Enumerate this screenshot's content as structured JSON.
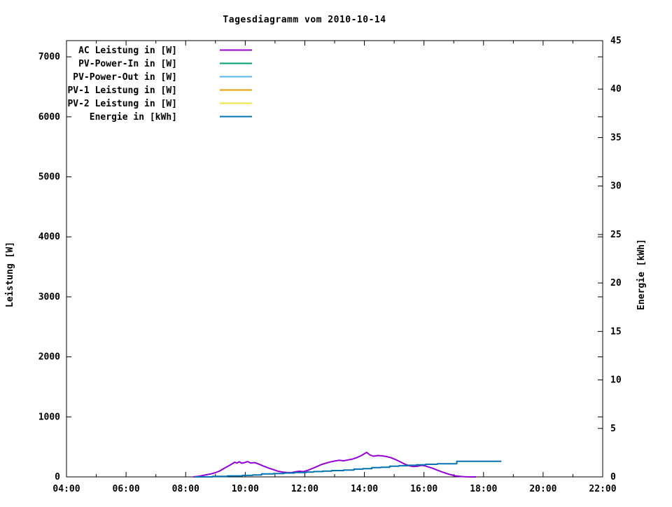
{
  "chart_data": {
    "type": "line",
    "title": "Tagesdiagramm vom 2010-10-14",
    "xlabel": "",
    "ylabel": "Leistung [W]",
    "y2label": "Energie [kWh]",
    "grid": false,
    "legend_position": "top-left-inside",
    "background_color": "#ffffff",
    "axis_color": "#000000",
    "xlim_hours": [
      4,
      22
    ],
    "ylim": [
      0,
      7270
    ],
    "y2lim": [
      0,
      45
    ],
    "xticks": [
      {
        "h": 4,
        "label": "04:00"
      },
      {
        "h": 6,
        "label": "06:00"
      },
      {
        "h": 8,
        "label": "08:00"
      },
      {
        "h": 10,
        "label": "10:00"
      },
      {
        "h": 12,
        "label": "12:00"
      },
      {
        "h": 14,
        "label": "14:00"
      },
      {
        "h": 16,
        "label": "16:00"
      },
      {
        "h": 18,
        "label": "18:00"
      },
      {
        "h": 20,
        "label": "20:00"
      },
      {
        "h": 22,
        "label": "22:00"
      }
    ],
    "x_minor_hours": [
      5,
      7,
      9,
      11,
      13,
      15,
      17,
      19,
      21
    ],
    "yticks": [
      0,
      1000,
      2000,
      3000,
      4000,
      5000,
      6000,
      7000
    ],
    "y2ticks": [
      0,
      5,
      10,
      15,
      20,
      25,
      30,
      35,
      40,
      45
    ],
    "series": [
      {
        "name": "AC Leistung in [W]",
        "color": "#9400d3",
        "axis": "y1",
        "style": "line",
        "points": [
          [
            8.25,
            0
          ],
          [
            8.45,
            10
          ],
          [
            8.65,
            30
          ],
          [
            8.85,
            50
          ],
          [
            9.0,
            70
          ],
          [
            9.15,
            100
          ],
          [
            9.3,
            145
          ],
          [
            9.45,
            185
          ],
          [
            9.55,
            215
          ],
          [
            9.65,
            245
          ],
          [
            9.72,
            230
          ],
          [
            9.8,
            252
          ],
          [
            9.88,
            228
          ],
          [
            9.98,
            238
          ],
          [
            10.08,
            256
          ],
          [
            10.18,
            232
          ],
          [
            10.32,
            238
          ],
          [
            10.48,
            208
          ],
          [
            10.62,
            178
          ],
          [
            10.78,
            148
          ],
          [
            10.95,
            120
          ],
          [
            11.1,
            95
          ],
          [
            11.25,
            80
          ],
          [
            11.4,
            72
          ],
          [
            11.55,
            70
          ],
          [
            11.68,
            85
          ],
          [
            11.82,
            95
          ],
          [
            11.95,
            88
          ],
          [
            12.1,
            108
          ],
          [
            12.25,
            140
          ],
          [
            12.4,
            172
          ],
          [
            12.55,
            204
          ],
          [
            12.7,
            228
          ],
          [
            12.85,
            248
          ],
          [
            13.0,
            264
          ],
          [
            13.15,
            276
          ],
          [
            13.3,
            268
          ],
          [
            13.45,
            282
          ],
          [
            13.6,
            296
          ],
          [
            13.75,
            322
          ],
          [
            13.9,
            356
          ],
          [
            14.0,
            386
          ],
          [
            14.08,
            408
          ],
          [
            14.18,
            368
          ],
          [
            14.3,
            344
          ],
          [
            14.45,
            356
          ],
          [
            14.6,
            350
          ],
          [
            14.75,
            338
          ],
          [
            14.9,
            318
          ],
          [
            15.05,
            288
          ],
          [
            15.2,
            252
          ],
          [
            15.35,
            214
          ],
          [
            15.5,
            186
          ],
          [
            15.65,
            172
          ],
          [
            15.8,
            178
          ],
          [
            15.92,
            192
          ],
          [
            16.02,
            186
          ],
          [
            16.15,
            166
          ],
          [
            16.3,
            142
          ],
          [
            16.45,
            112
          ],
          [
            16.6,
            84
          ],
          [
            16.75,
            58
          ],
          [
            16.9,
            36
          ],
          [
            17.05,
            18
          ],
          [
            17.2,
            8
          ],
          [
            17.35,
            2
          ],
          [
            17.5,
            0
          ],
          [
            17.75,
            0
          ]
        ]
      },
      {
        "name": "PV-Power-In in [W]",
        "color": "#009e73",
        "axis": "y1",
        "style": "line",
        "points": []
      },
      {
        "name": "PV-Power-Out in [W]",
        "color": "#56b4e9",
        "axis": "y1",
        "style": "line",
        "points": []
      },
      {
        "name": "PV-1 Leistung in [W]",
        "color": "#e69f00",
        "axis": "y1",
        "style": "line",
        "points": []
      },
      {
        "name": "PV-2 Leistung in [W]",
        "color": "#f0e442",
        "axis": "y1",
        "style": "line",
        "points": []
      },
      {
        "name": "Energie in [kWh]",
        "color": "#0072b2",
        "axis": "y2",
        "style": "steps",
        "points": [
          [
            8.3,
            0
          ],
          [
            8.9,
            0.05
          ],
          [
            9.4,
            0.1
          ],
          [
            9.9,
            0.15
          ],
          [
            10.25,
            0.2
          ],
          [
            10.55,
            0.3
          ],
          [
            10.95,
            0.35
          ],
          [
            11.3,
            0.4
          ],
          [
            11.65,
            0.45
          ],
          [
            12.05,
            0.5
          ],
          [
            12.3,
            0.55
          ],
          [
            12.6,
            0.6
          ],
          [
            12.9,
            0.65
          ],
          [
            13.3,
            0.7
          ],
          [
            13.65,
            0.8
          ],
          [
            13.95,
            0.85
          ],
          [
            14.25,
            0.95
          ],
          [
            14.55,
            1.0
          ],
          [
            14.85,
            1.1
          ],
          [
            15.15,
            1.15
          ],
          [
            15.45,
            1.2
          ],
          [
            15.75,
            1.25
          ],
          [
            16.05,
            1.3
          ],
          [
            16.45,
            1.35
          ],
          [
            17.1,
            1.6
          ],
          [
            18.6,
            1.6
          ]
        ]
      }
    ]
  }
}
